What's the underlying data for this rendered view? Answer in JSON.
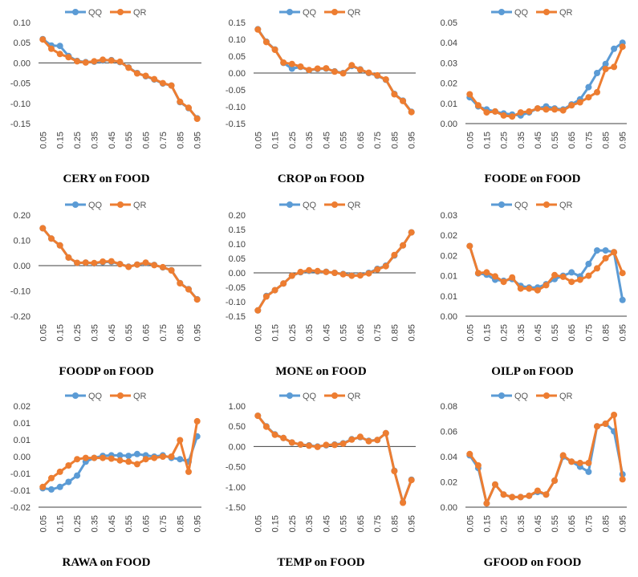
{
  "chart_data": [
    {
      "type": "line",
      "title": "CERY on FOOD",
      "x": [
        "0.05",
        "0.10",
        "0.15",
        "0.20",
        "0.25",
        "0.30",
        "0.35",
        "0.40",
        "0.45",
        "0.50",
        "0.55",
        "0.60",
        "0.65",
        "0.70",
        "0.75",
        "0.80",
        "0.85",
        "0.90",
        "0.95"
      ],
      "xticks": [
        "0.05",
        "0.15",
        "0.25",
        "0.35",
        "0.45",
        "0.55",
        "0.65",
        "0.75",
        "0.85",
        "0.95"
      ],
      "ylim": [
        -0.15,
        0.1
      ],
      "yticks": [
        "-0.15",
        "-0.10",
        "-0.05",
        "0.00",
        "0.05",
        "0.10"
      ],
      "zero_line": true,
      "series": [
        {
          "name": "QQ",
          "color": "#5B9BD5",
          "values": [
            0.059,
            0.043,
            0.042,
            0.017,
            0.005,
            0.002,
            0.003,
            0.006,
            0.007,
            0.002,
            -0.011,
            -0.025,
            -0.033,
            -0.041,
            -0.051,
            -0.056,
            -0.097,
            -0.112,
            -0.137
          ]
        },
        {
          "name": "QR",
          "color": "#ED7D31",
          "values": [
            0.058,
            0.035,
            0.022,
            0.014,
            0.004,
            0.001,
            0.004,
            0.008,
            0.006,
            0.003,
            -0.012,
            -0.026,
            -0.032,
            -0.04,
            -0.05,
            -0.056,
            -0.096,
            -0.111,
            -0.138
          ]
        }
      ]
    },
    {
      "type": "line",
      "title": "CROP on FOOD",
      "x": [
        "0.05",
        "0.10",
        "0.15",
        "0.20",
        "0.25",
        "0.30",
        "0.35",
        "0.40",
        "0.45",
        "0.50",
        "0.55",
        "0.60",
        "0.65",
        "0.70",
        "0.75",
        "0.80",
        "0.85",
        "0.90",
        "0.95"
      ],
      "xticks": [
        "0.05",
        "0.15",
        "0.25",
        "0.35",
        "0.45",
        "0.55",
        "0.65",
        "0.75",
        "0.85",
        "0.95"
      ],
      "ylim": [
        -0.15,
        0.15
      ],
      "yticks": [
        "-0.15",
        "-0.10",
        "-0.05",
        "0.00",
        "0.05",
        "0.10",
        "0.15"
      ],
      "zero_line": true,
      "series": [
        {
          "name": "QQ",
          "color": "#5B9BD5",
          "values": [
            0.13,
            0.093,
            0.07,
            0.03,
            0.013,
            0.018,
            0.008,
            0.012,
            0.013,
            0.005,
            0.0,
            0.021,
            0.011,
            0.0,
            -0.008,
            -0.02,
            -0.062,
            -0.082,
            -0.115
          ]
        },
        {
          "name": "QR",
          "color": "#ED7D31",
          "values": [
            0.129,
            0.092,
            0.069,
            0.031,
            0.027,
            0.019,
            0.009,
            0.013,
            0.014,
            0.004,
            -0.001,
            0.023,
            0.01,
            0.001,
            -0.007,
            -0.019,
            -0.063,
            -0.083,
            -0.116
          ]
        }
      ]
    },
    {
      "type": "line",
      "title": "FOODE on FOOD",
      "x": [
        "0.05",
        "0.10",
        "0.15",
        "0.20",
        "0.25",
        "0.30",
        "0.35",
        "0.40",
        "0.45",
        "0.50",
        "0.55",
        "0.60",
        "0.65",
        "0.70",
        "0.75",
        "0.80",
        "0.85",
        "0.90",
        "0.95"
      ],
      "xticks": [
        "0.05",
        "0.15",
        "0.25",
        "0.35",
        "0.45",
        "0.55",
        "0.65",
        "0.75",
        "0.85",
        "0.95"
      ],
      "ylim": [
        0,
        0.05
      ],
      "yticks": [
        "0.00",
        "0.01",
        "0.02",
        "0.03",
        "0.04",
        "0.05"
      ],
      "zero_line": false,
      "series": [
        {
          "name": "QQ",
          "color": "#5B9BD5",
          "values": [
            0.013,
            0.0085,
            0.007,
            0.006,
            0.005,
            0.0045,
            0.004,
            0.0055,
            0.0075,
            0.0085,
            0.0075,
            0.007,
            0.0095,
            0.012,
            0.018,
            0.025,
            0.0295,
            0.037,
            0.04
          ]
        },
        {
          "name": "QR",
          "color": "#ED7D31",
          "values": [
            0.0145,
            0.009,
            0.0055,
            0.006,
            0.004,
            0.0035,
            0.0055,
            0.006,
            0.0075,
            0.007,
            0.007,
            0.0065,
            0.009,
            0.0105,
            0.013,
            0.0155,
            0.027,
            0.028,
            0.038
          ]
        }
      ]
    },
    {
      "type": "line",
      "title": "FOODP on FOOD",
      "x": [
        "0.05",
        "0.10",
        "0.15",
        "0.20",
        "0.25",
        "0.30",
        "0.35",
        "0.40",
        "0.45",
        "0.50",
        "0.55",
        "0.60",
        "0.65",
        "0.70",
        "0.75",
        "0.80",
        "0.85",
        "0.90",
        "0.95"
      ],
      "xticks": [
        "0.05",
        "0.15",
        "0.25",
        "0.35",
        "0.45",
        "0.55",
        "0.65",
        "0.75",
        "0.85",
        "0.95"
      ],
      "ylim": [
        -0.2,
        0.2
      ],
      "yticks": [
        "-0.20",
        "-0.10",
        "0.00",
        "0.10",
        "0.20"
      ],
      "zero_line": true,
      "series": [
        {
          "name": "QQ",
          "color": "#5B9BD5",
          "values": [
            0.148,
            0.107,
            0.08,
            0.032,
            0.01,
            0.012,
            0.009,
            0.014,
            0.015,
            0.006,
            -0.004,
            0.004,
            0.01,
            0.003,
            -0.007,
            -0.018,
            -0.069,
            -0.093,
            -0.133
          ]
        },
        {
          "name": "QR",
          "color": "#ED7D31",
          "values": [
            0.148,
            0.107,
            0.08,
            0.032,
            0.011,
            0.012,
            0.01,
            0.016,
            0.017,
            0.006,
            -0.005,
            0.004,
            0.012,
            0.002,
            -0.006,
            -0.019,
            -0.07,
            -0.094,
            -0.134
          ]
        }
      ]
    },
    {
      "type": "line",
      "title": "MONE on FOOD",
      "x": [
        "0.05",
        "0.10",
        "0.15",
        "0.20",
        "0.25",
        "0.30",
        "0.35",
        "0.40",
        "0.45",
        "0.50",
        "0.55",
        "0.60",
        "0.65",
        "0.70",
        "0.75",
        "0.80",
        "0.85",
        "0.90",
        "0.95"
      ],
      "xticks": [
        "0.05",
        "0.15",
        "0.25",
        "0.35",
        "0.45",
        "0.55",
        "0.65",
        "0.75",
        "0.85",
        "0.95"
      ],
      "ylim": [
        -0.15,
        0.2
      ],
      "yticks": [
        "-0.15",
        "-0.10",
        "-0.05",
        "0.00",
        "0.05",
        "0.10",
        "0.15",
        "0.20"
      ],
      "zero_line": true,
      "series": [
        {
          "name": "QQ",
          "color": "#5B9BD5",
          "values": [
            -0.13,
            -0.08,
            -0.06,
            -0.037,
            -0.01,
            0.002,
            0.007,
            0.005,
            0.004,
            0.0,
            -0.004,
            -0.009,
            -0.008,
            0.0,
            0.014,
            0.025,
            0.06,
            0.095,
            0.14
          ]
        },
        {
          "name": "QR",
          "color": "#ED7D31",
          "values": [
            -0.13,
            -0.082,
            -0.06,
            -0.037,
            -0.01,
            0.003,
            0.009,
            0.006,
            0.003,
            0.0,
            -0.005,
            -0.01,
            -0.009,
            -0.002,
            0.012,
            0.023,
            0.062,
            0.095,
            0.14
          ]
        }
      ]
    },
    {
      "type": "line",
      "title": "OILP on FOOD",
      "x": [
        "0.05",
        "0.10",
        "0.15",
        "0.20",
        "0.25",
        "0.30",
        "0.35",
        "0.40",
        "0.45",
        "0.50",
        "0.55",
        "0.60",
        "0.65",
        "0.70",
        "0.75",
        "0.80",
        "0.85",
        "0.90",
        "0.95"
      ],
      "xticks": [
        "0.05",
        "0.15",
        "0.25",
        "0.35",
        "0.45",
        "0.55",
        "0.65",
        "0.75",
        "0.85",
        "0.95"
      ],
      "ylim": [
        0,
        0.03
      ],
      "yticks": [
        "0.00",
        "0.01",
        "0.01",
        "0.02",
        "0.02",
        "0.03"
      ],
      "zero_line": false,
      "series": [
        {
          "name": "QQ",
          "color": "#5B9BD5",
          "values": [
            0.0208,
            0.0127,
            0.0123,
            0.0108,
            0.0105,
            0.011,
            0.009,
            0.0085,
            0.0085,
            0.0095,
            0.011,
            0.012,
            0.013,
            0.0118,
            0.0155,
            0.0195,
            0.0195,
            0.019,
            0.0048
          ]
        },
        {
          "name": "QR",
          "color": "#ED7D31",
          "values": [
            0.0208,
            0.0128,
            0.013,
            0.0118,
            0.0102,
            0.0115,
            0.0082,
            0.0082,
            0.0077,
            0.0092,
            0.0122,
            0.0117,
            0.0102,
            0.0108,
            0.012,
            0.0142,
            0.0172,
            0.019,
            0.0128
          ]
        }
      ]
    },
    {
      "type": "line",
      "title": "RAWA on FOOD",
      "x": [
        "0.05",
        "0.10",
        "0.15",
        "0.20",
        "0.25",
        "0.30",
        "0.35",
        "0.40",
        "0.45",
        "0.50",
        "0.55",
        "0.60",
        "0.65",
        "0.70",
        "0.75",
        "0.80",
        "0.85",
        "0.90",
        "0.95"
      ],
      "xticks": [
        "0.05",
        "0.15",
        "0.25",
        "0.35",
        "0.45",
        "0.55",
        "0.65",
        "0.75",
        "0.85",
        "0.95"
      ],
      "ylim": [
        -0.02,
        0.02
      ],
      "yticks": [
        "-0.02",
        "-0.01",
        "-0.01",
        "0.00",
        "0.01",
        "0.01",
        "0.02"
      ],
      "zero_line": false,
      "series": [
        {
          "name": "QQ",
          "color": "#5B9BD5",
          "values": [
            -0.0125,
            -0.013,
            -0.012,
            -0.01,
            -0.0075,
            -0.002,
            -0.0005,
            0.0003,
            0.0005,
            0.0005,
            0.0003,
            0.001,
            0.0005,
            0.0,
            0.0005,
            -0.0005,
            -0.001,
            -0.002,
            0.008
          ]
        },
        {
          "name": "QR",
          "color": "#ED7D31",
          "values": [
            -0.012,
            -0.0085,
            -0.006,
            -0.0035,
            -0.001,
            -0.0005,
            -0.0005,
            -0.0005,
            -0.0008,
            -0.0015,
            -0.002,
            -0.003,
            -0.001,
            -0.0005,
            0.0,
            0.0,
            0.0065,
            -0.006,
            0.014
          ]
        }
      ]
    },
    {
      "type": "line",
      "title": "TEMP on FOOD",
      "x": [
        "0.05",
        "0.10",
        "0.15",
        "0.20",
        "0.25",
        "0.30",
        "0.35",
        "0.40",
        "0.45",
        "0.50",
        "0.55",
        "0.60",
        "0.65",
        "0.70",
        "0.75",
        "0.80",
        "0.85",
        "0.90",
        "0.95"
      ],
      "xticks": [
        "0.05",
        "0.15",
        "0.25",
        "0.35",
        "0.45",
        "0.55",
        "0.65",
        "0.75",
        "0.85",
        "0.95"
      ],
      "ylim": [
        -1.5,
        1.0
      ],
      "yticks": [
        "-1.50",
        "-1.00",
        "-0.50",
        "0.00",
        "0.50",
        "1.00"
      ],
      "zero_line": true,
      "series": [
        {
          "name": "QQ",
          "color": "#5B9BD5",
          "values": [
            0.76,
            0.5,
            0.3,
            0.21,
            0.1,
            0.05,
            0.03,
            0.0,
            0.03,
            0.05,
            0.08,
            0.18,
            0.23,
            0.14,
            0.16,
            0.33,
            -0.6,
            -1.38,
            -0.82
          ]
        },
        {
          "name": "QR",
          "color": "#ED7D31",
          "values": [
            0.76,
            0.49,
            0.29,
            0.21,
            0.1,
            0.05,
            0.02,
            -0.01,
            0.04,
            0.04,
            0.07,
            0.17,
            0.24,
            0.13,
            0.16,
            0.33,
            -0.61,
            -1.39,
            -0.83
          ]
        }
      ]
    },
    {
      "type": "line",
      "title": "GFOOD on FOOD",
      "x": [
        "0.05",
        "0.10",
        "0.15",
        "0.20",
        "0.25",
        "0.30",
        "0.35",
        "0.40",
        "0.45",
        "0.50",
        "0.55",
        "0.60",
        "0.65",
        "0.70",
        "0.75",
        "0.80",
        "0.85",
        "0.90",
        "0.95"
      ],
      "xticks": [
        "0.05",
        "0.15",
        "0.25",
        "0.35",
        "0.45",
        "0.55",
        "0.65",
        "0.75",
        "0.85",
        "0.95"
      ],
      "ylim": [
        0,
        0.08
      ],
      "yticks": [
        "0.00",
        "0.02",
        "0.04",
        "0.06",
        "0.08"
      ],
      "zero_line": false,
      "series": [
        {
          "name": "QQ",
          "color": "#5B9BD5",
          "values": [
            0.041,
            0.031,
            0.003,
            0.018,
            0.01,
            0.008,
            0.008,
            0.009,
            0.012,
            0.01,
            0.021,
            0.04,
            0.036,
            0.032,
            0.028,
            0.064,
            0.066,
            0.06,
            0.026
          ]
        },
        {
          "name": "QR",
          "color": "#ED7D31",
          "values": [
            0.042,
            0.033,
            0.003,
            0.018,
            0.01,
            0.008,
            0.008,
            0.009,
            0.013,
            0.01,
            0.021,
            0.041,
            0.036,
            0.035,
            0.035,
            0.064,
            0.066,
            0.073,
            0.022
          ]
        }
      ]
    }
  ]
}
